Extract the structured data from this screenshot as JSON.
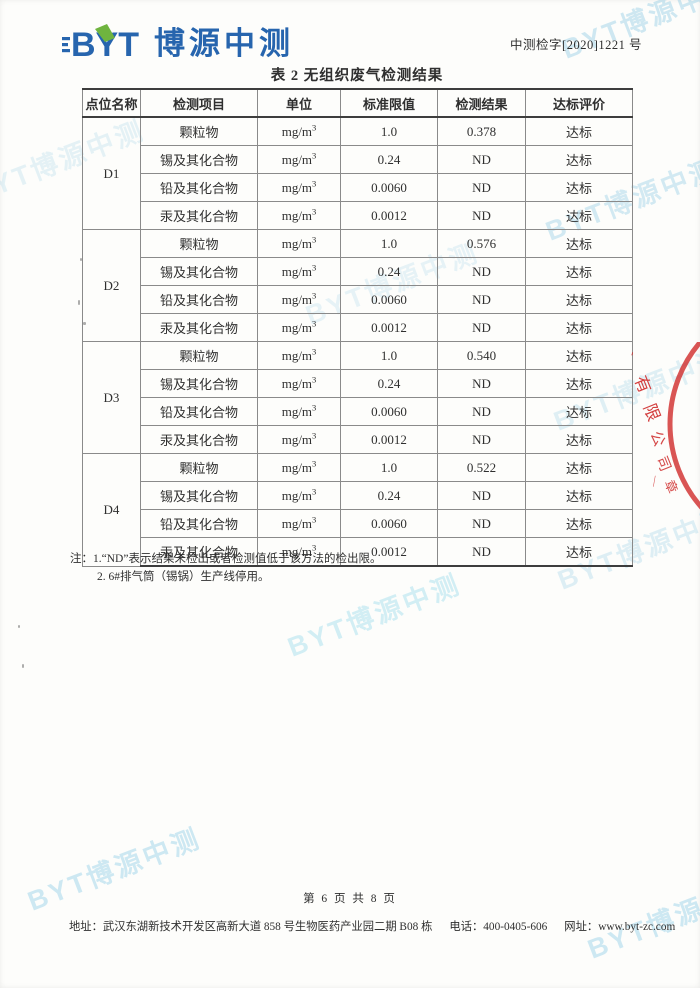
{
  "header": {
    "logo_abbr": "BYT",
    "logo_text": "博源中测",
    "doc_number": "中测检字[2020]1221 号"
  },
  "table": {
    "title": "表 2  无组织废气检测结果",
    "headers": [
      "点位名称",
      "检测项目",
      "单位",
      "标准限值",
      "检测结果",
      "达标评价"
    ],
    "groups": [
      {
        "point": "D1",
        "rows": [
          {
            "item": "颗粒物",
            "unit": "mg/m",
            "unit_sup": "3",
            "limit": "1.0",
            "result": "0.378",
            "evaluation": "达标"
          },
          {
            "item": "锡及其化合物",
            "unit": "mg/m",
            "unit_sup": "3",
            "limit": "0.24",
            "result": "ND",
            "evaluation": "达标"
          },
          {
            "item": "铅及其化合物",
            "unit": "mg/m",
            "unit_sup": "3",
            "limit": "0.0060",
            "result": "ND",
            "evaluation": "达标"
          },
          {
            "item": "汞及其化合物",
            "unit": "mg/m",
            "unit_sup": "3",
            "limit": "0.0012",
            "result": "ND",
            "evaluation": "达标"
          }
        ]
      },
      {
        "point": "D2",
        "rows": [
          {
            "item": "颗粒物",
            "unit": "mg/m",
            "unit_sup": "3",
            "limit": "1.0",
            "result": "0.576",
            "evaluation": "达标"
          },
          {
            "item": "锡及其化合物",
            "unit": "mg/m",
            "unit_sup": "3",
            "limit": "0.24",
            "result": "ND",
            "evaluation": "达标"
          },
          {
            "item": "铅及其化合物",
            "unit": "mg/m",
            "unit_sup": "3",
            "limit": "0.0060",
            "result": "ND",
            "evaluation": "达标"
          },
          {
            "item": "汞及其化合物",
            "unit": "mg/m",
            "unit_sup": "3",
            "limit": "0.0012",
            "result": "ND",
            "evaluation": "达标"
          }
        ]
      },
      {
        "point": "D3",
        "rows": [
          {
            "item": "颗粒物",
            "unit": "mg/m",
            "unit_sup": "3",
            "limit": "1.0",
            "result": "0.540",
            "evaluation": "达标"
          },
          {
            "item": "锡及其化合物",
            "unit": "mg/m",
            "unit_sup": "3",
            "limit": "0.24",
            "result": "ND",
            "evaluation": "达标"
          },
          {
            "item": "铅及其化合物",
            "unit": "mg/m",
            "unit_sup": "3",
            "limit": "0.0060",
            "result": "ND",
            "evaluation": "达标"
          },
          {
            "item": "汞及其化合物",
            "unit": "mg/m",
            "unit_sup": "3",
            "limit": "0.0012",
            "result": "ND",
            "evaluation": "达标"
          }
        ]
      },
      {
        "point": "D4",
        "rows": [
          {
            "item": "颗粒物",
            "unit": "mg/m",
            "unit_sup": "3",
            "limit": "1.0",
            "result": "0.522",
            "evaluation": "达标"
          },
          {
            "item": "锡及其化合物",
            "unit": "mg/m",
            "unit_sup": "3",
            "limit": "0.24",
            "result": "ND",
            "evaluation": "达标"
          },
          {
            "item": "铅及其化合物",
            "unit": "mg/m",
            "unit_sup": "3",
            "limit": "0.0060",
            "result": "ND",
            "evaluation": "达标"
          },
          {
            "item": "汞及其化合物",
            "unit": "mg/m",
            "unit_sup": "3",
            "limit": "0.0012",
            "result": "ND",
            "evaluation": "达标"
          }
        ]
      }
    ]
  },
  "notes": {
    "line1": "注：1.“ND”表示结果未检出或者检测值低于该方法的检出限。",
    "line2": "2. 6#排气筒（锡锅）生产线停用。"
  },
  "footer": {
    "page_info": "第 6 页 共 8 页",
    "address": "地址：武汉东湖新技术开发区高新大道 858 号生物医药产业园二期 B08 栋",
    "phone": "电话：400-0405-606",
    "website": "网址：www.byt-zc.com"
  },
  "watermark": {
    "text": "BYT博源中测"
  },
  "stamp": {
    "chars": [
      "有",
      "限",
      "公",
      "司"
    ],
    "char_lower": "章",
    "dash": "—"
  },
  "colors": {
    "logo_blue": "#2765ae",
    "logo_green": "#6fb43f",
    "watermark_blue": "#8ecbe4",
    "stamp_red": "#cf2b2b"
  }
}
